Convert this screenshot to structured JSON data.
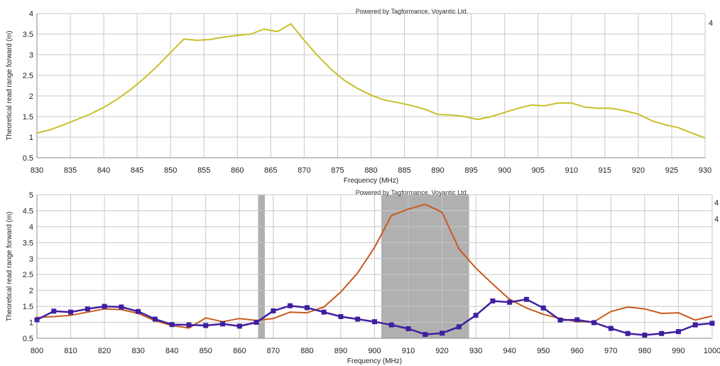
{
  "chart_data": [
    {
      "type": "line",
      "credit": "Powered by Tagformance, Voyantic Ltd.",
      "right_marker": "4",
      "xlabel": "Frequency (MHz)",
      "ylabel": "Theoretical read range forward (m)",
      "xlim": [
        830,
        930
      ],
      "ylim": [
        0.5,
        4
      ],
      "xticks": [
        830,
        835,
        840,
        845,
        850,
        855,
        860,
        865,
        870,
        875,
        880,
        885,
        890,
        895,
        900,
        905,
        910,
        915,
        920,
        925,
        930
      ],
      "yticks": [
        0.5,
        1,
        1.5,
        2,
        2.5,
        3,
        3.5,
        4
      ],
      "grid": true,
      "series": [
        {
          "color": "#c8c02a",
          "markers": false,
          "x": [
            830,
            832,
            834,
            836,
            838,
            840,
            842,
            844,
            846,
            848,
            850,
            852,
            854,
            856,
            858,
            860,
            862,
            864,
            866,
            868,
            870,
            872,
            874,
            876,
            878,
            880,
            882,
            884,
            886,
            888,
            890,
            892,
            894,
            896,
            898,
            900,
            902,
            904,
            906,
            908,
            910,
            912,
            914,
            916,
            918,
            920,
            922,
            924,
            926,
            928,
            930
          ],
          "y": [
            1.1,
            1.18,
            1.3,
            1.43,
            1.56,
            1.72,
            1.92,
            2.15,
            2.42,
            2.72,
            3.05,
            3.38,
            3.35,
            3.37,
            3.43,
            3.47,
            3.5,
            3.62,
            3.56,
            3.75,
            3.35,
            2.98,
            2.65,
            2.38,
            2.18,
            2.02,
            1.9,
            1.84,
            1.77,
            1.68,
            1.55,
            1.54,
            1.5,
            1.43,
            1.5,
            1.6,
            1.7,
            1.78,
            1.76,
            1.83,
            1.83,
            1.73,
            1.7,
            1.7,
            1.64,
            1.56,
            1.4,
            1.3,
            1.23,
            1.1,
            0.98
          ]
        }
      ]
    },
    {
      "type": "line",
      "credit": "Powered by Tagformance, Voyantic Ltd.",
      "right_marker": "4",
      "xlabel": "Frequency (MHz)",
      "ylabel": "Theoretical read range forward (m)",
      "xlim": [
        800,
        1000
      ],
      "ylim": [
        0.5,
        5
      ],
      "xticks": [
        800,
        810,
        820,
        830,
        840,
        850,
        860,
        870,
        880,
        890,
        900,
        910,
        920,
        930,
        940,
        950,
        960,
        970,
        980,
        990,
        1000
      ],
      "yticks": [
        0.5,
        1,
        1.5,
        2,
        2.5,
        3,
        3.5,
        4,
        4.5,
        5
      ],
      "grid": true,
      "bands": [
        [
          865.5,
          867.5
        ],
        [
          902,
          928
        ]
      ],
      "band_color": "#b0b0b0",
      "series": [
        {
          "color": "#c85a1e",
          "markers": false,
          "x": [
            800,
            805,
            810,
            815,
            820,
            825,
            830,
            835,
            840,
            845,
            850,
            855,
            860,
            865,
            870,
            875,
            880,
            885,
            890,
            895,
            900,
            905,
            910,
            915,
            920,
            925,
            930,
            935,
            940,
            945,
            950,
            955,
            960,
            965,
            970,
            975,
            980,
            985,
            990,
            995,
            1000
          ],
          "y": [
            1.15,
            1.18,
            1.22,
            1.32,
            1.42,
            1.4,
            1.28,
            1.05,
            0.9,
            0.82,
            1.14,
            1.02,
            1.12,
            1.06,
            1.12,
            1.32,
            1.3,
            1.48,
            1.95,
            2.55,
            3.35,
            4.35,
            4.55,
            4.7,
            4.45,
            3.3,
            2.7,
            2.2,
            1.72,
            1.45,
            1.25,
            1.12,
            1.02,
            1.02,
            1.34,
            1.48,
            1.42,
            1.28,
            1.3,
            1.07,
            1.2
          ]
        },
        {
          "color": "#3f1fa0",
          "markers": true,
          "x": [
            800,
            805,
            810,
            815,
            820,
            825,
            830,
            835,
            840,
            845,
            850,
            855,
            860,
            865,
            870,
            875,
            880,
            885,
            890,
            895,
            900,
            905,
            910,
            915,
            920,
            925,
            930,
            935,
            940,
            945,
            950,
            955,
            960,
            965,
            970,
            975,
            980,
            985,
            990,
            995,
            1000
          ],
          "y": [
            1.08,
            1.35,
            1.32,
            1.42,
            1.5,
            1.48,
            1.34,
            1.1,
            0.93,
            0.92,
            0.9,
            0.95,
            0.88,
            1.0,
            1.36,
            1.52,
            1.46,
            1.32,
            1.18,
            1.1,
            1.02,
            0.92,
            0.8,
            0.62,
            0.66,
            0.86,
            1.22,
            1.67,
            1.63,
            1.72,
            1.45,
            1.07,
            1.08,
            0.99,
            0.81,
            0.65,
            0.6,
            0.65,
            0.71,
            0.92,
            0.97
          ]
        }
      ]
    }
  ]
}
